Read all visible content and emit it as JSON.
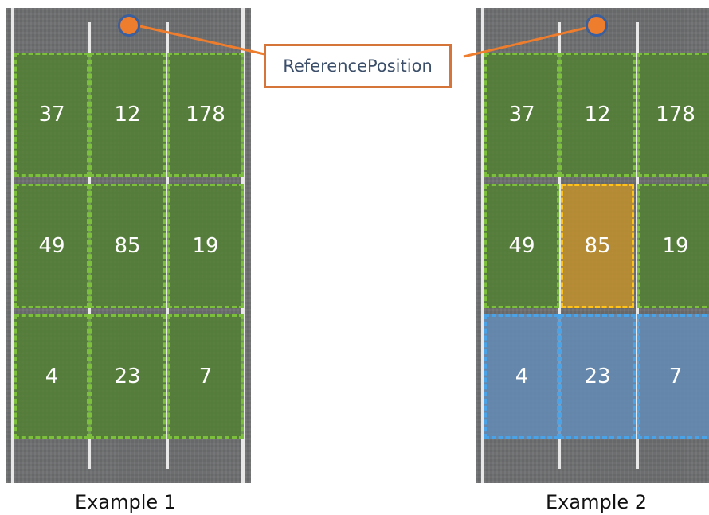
{
  "callout_label": "ReferencePosition",
  "examples": [
    {
      "caption": "Example 1",
      "cells": [
        {
          "value": "37",
          "state": "green"
        },
        {
          "value": "12",
          "state": "green"
        },
        {
          "value": "178",
          "state": "green"
        },
        {
          "value": "49",
          "state": "green"
        },
        {
          "value": "85",
          "state": "green"
        },
        {
          "value": "19",
          "state": "green"
        },
        {
          "value": "4",
          "state": "green"
        },
        {
          "value": "23",
          "state": "green"
        },
        {
          "value": "7",
          "state": "green"
        }
      ]
    },
    {
      "caption": "Example 2",
      "cells": [
        {
          "value": "37",
          "state": "green"
        },
        {
          "value": "12",
          "state": "green"
        },
        {
          "value": "178",
          "state": "green"
        },
        {
          "value": "49",
          "state": "green"
        },
        {
          "value": "85",
          "state": "orange"
        },
        {
          "value": "19",
          "state": "green"
        },
        {
          "value": "4",
          "state": "blue"
        },
        {
          "value": "23",
          "state": "blue"
        },
        {
          "value": "7",
          "state": "blue"
        }
      ]
    }
  ],
  "colors": {
    "green": "#7bbf3c",
    "orange": "#ffc21a",
    "blue": "#4aa3e6",
    "marker": "#ee7d2e",
    "callout_border": "#d5753a"
  }
}
